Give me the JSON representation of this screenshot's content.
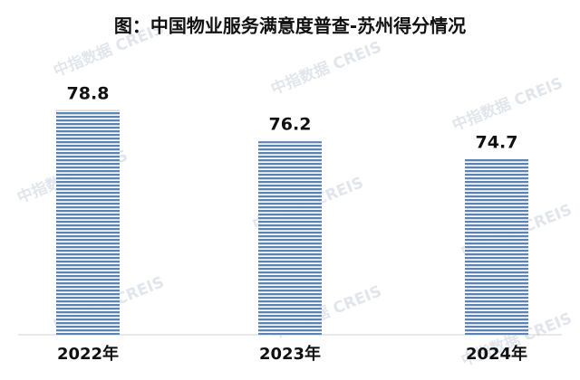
{
  "chart_data": {
    "type": "bar",
    "title": "图：中国物业服务满意度普查-苏州得分情况",
    "watermark": "中指数据 CREIS",
    "categories": [
      "2022年",
      "2023年",
      "2024年"
    ],
    "values": [
      78.8,
      76.2,
      74.7
    ],
    "color": "#5f83b0",
    "ylim": [
      60,
      80
    ]
  }
}
